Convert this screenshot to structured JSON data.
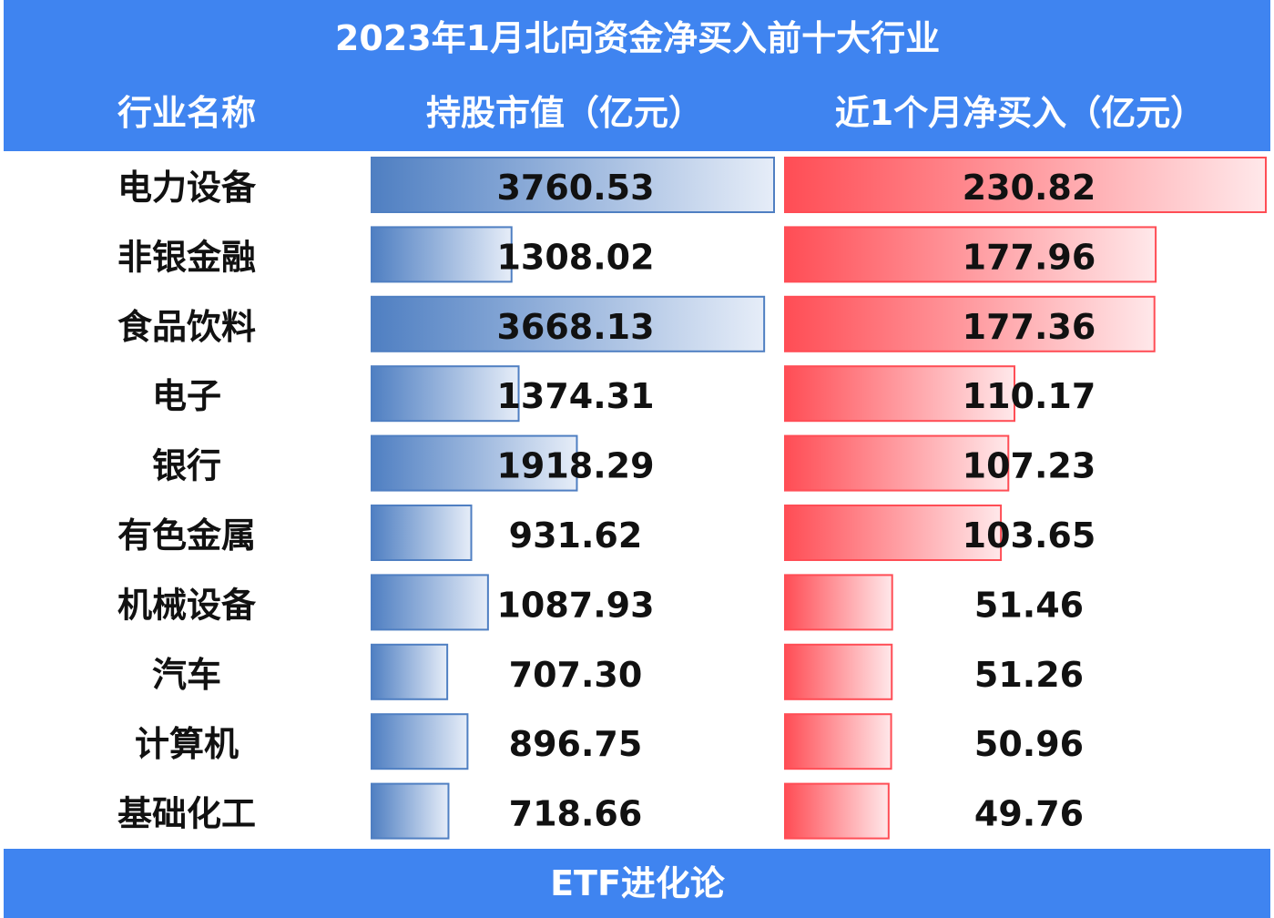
{
  "chart_data": {
    "type": "table-bar",
    "title": "2023年1月北向资金净买入前十大行业",
    "category_label": "行业名称",
    "categories": [
      "电力设备",
      "非银金融",
      "食品饮料",
      "电子",
      "银行",
      "有色金属",
      "机械设备",
      "汽车",
      "计算机",
      "基础化工"
    ],
    "series": [
      {
        "name": "持股市值（亿元）",
        "color": "#4f7fc2",
        "values": [
          3760.53,
          1308.02,
          3668.13,
          1374.31,
          1918.29,
          931.62,
          1087.93,
          707.3,
          896.75,
          718.66
        ],
        "value_labels": [
          "3760.53",
          "1308.02",
          "3668.13",
          "1374.31",
          "1918.29",
          "931.62",
          "1087.93",
          "707.30",
          "896.75",
          "718.66"
        ]
      },
      {
        "name": "近1个月净买入（亿元）",
        "color": "#ff4d55",
        "values": [
          230.82,
          177.96,
          177.36,
          110.17,
          107.23,
          103.65,
          51.46,
          51.26,
          50.96,
          49.76
        ],
        "value_labels": [
          "230.82",
          "177.96",
          "177.36",
          "110.17",
          "107.23",
          "103.65",
          "51.46",
          "51.26",
          "50.96",
          "49.76"
        ]
      }
    ],
    "footer": "ETF进化论"
  }
}
